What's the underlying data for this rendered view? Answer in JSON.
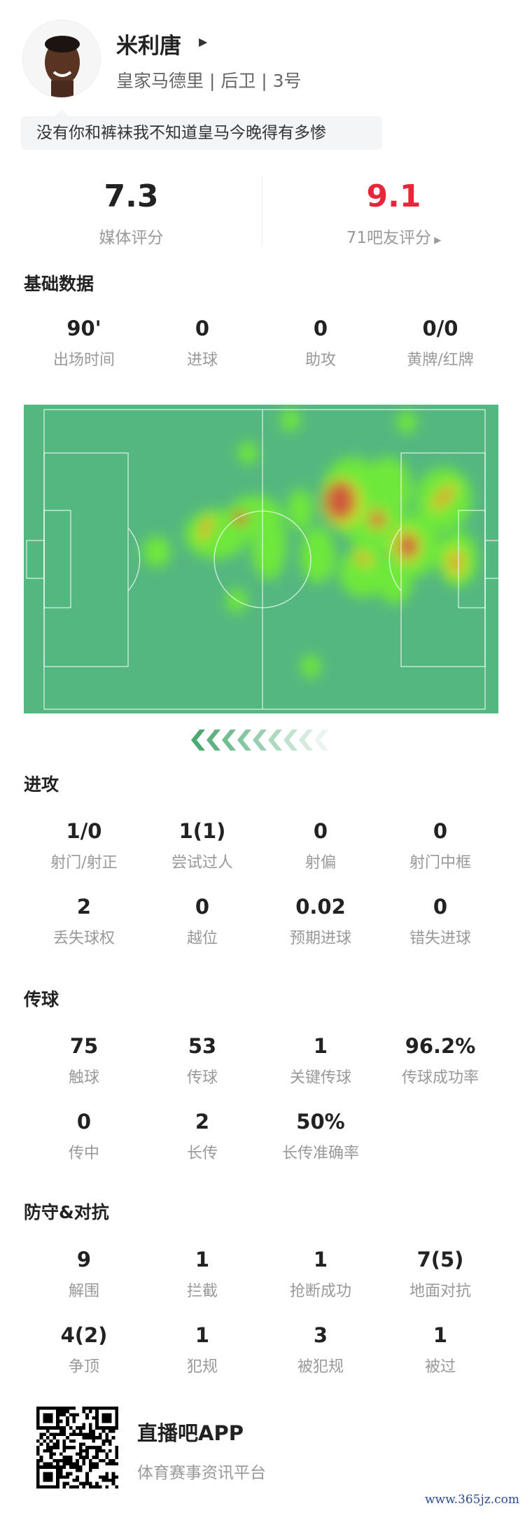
{
  "player": {
    "name": "米利唐",
    "team_line": "皇家马德里 | 后卫 | 3号",
    "comment": "没有你和裤袜我不知道皇马今晚得有多惨"
  },
  "ratings": {
    "media_score": "7.3",
    "media_label": "媒体评分",
    "fan_score": "9.1",
    "fan_label": "71吧友评分",
    "fan_score_color": "#e8263a"
  },
  "basic": {
    "title": "基础数据",
    "stats": [
      {
        "value": "90'",
        "label": "出场时间"
      },
      {
        "value": "0",
        "label": "进球"
      },
      {
        "value": "0",
        "label": "助攻"
      },
      {
        "value": "0/0",
        "label": "黄牌/红牌"
      }
    ]
  },
  "heatmap": {
    "pitch_color": "#55b780",
    "attack_direction": "left"
  },
  "attack": {
    "title": "进攻",
    "stats": [
      {
        "value": "1/0",
        "label": "射门/射正"
      },
      {
        "value": "1(1)",
        "label": "尝试过人"
      },
      {
        "value": "0",
        "label": "射偏"
      },
      {
        "value": "0",
        "label": "射门中框"
      },
      {
        "value": "2",
        "label": "丢失球权"
      },
      {
        "value": "0",
        "label": "越位"
      },
      {
        "value": "0.02",
        "label": "预期进球"
      },
      {
        "value": "0",
        "label": "错失进球"
      }
    ]
  },
  "passing": {
    "title": "传球",
    "stats": [
      {
        "value": "75",
        "label": "触球"
      },
      {
        "value": "53",
        "label": "传球"
      },
      {
        "value": "1",
        "label": "关键传球"
      },
      {
        "value": "96.2%",
        "label": "传球成功率"
      },
      {
        "value": "0",
        "label": "传中"
      },
      {
        "value": "2",
        "label": "长传"
      },
      {
        "value": "50%",
        "label": "长传准确率"
      }
    ]
  },
  "defense": {
    "title": "防守&对抗",
    "stats": [
      {
        "value": "9",
        "label": "解围"
      },
      {
        "value": "1",
        "label": "拦截"
      },
      {
        "value": "1",
        "label": "抢断成功"
      },
      {
        "value": "7(5)",
        "label": "地面对抗"
      },
      {
        "value": "4(2)",
        "label": "争顶"
      },
      {
        "value": "1",
        "label": "犯规"
      },
      {
        "value": "3",
        "label": "被犯规"
      },
      {
        "value": "1",
        "label": "被过"
      }
    ]
  },
  "footer": {
    "app_name": "直播吧APP",
    "slogan": "体育赛事资讯平台",
    "watermark": "www.365jz.com"
  }
}
